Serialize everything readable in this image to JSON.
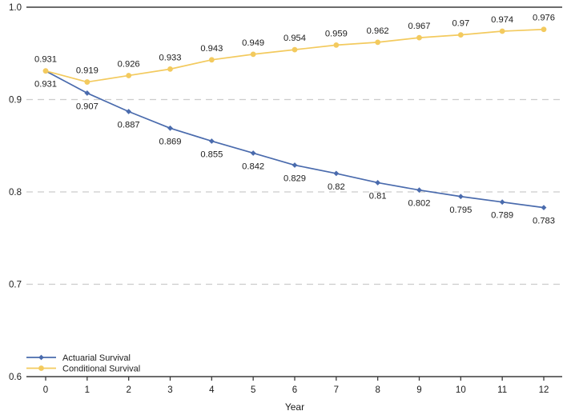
{
  "chart_data": {
    "type": "line",
    "title": "",
    "xlabel": "Year",
    "ylabel": "",
    "x": [
      0,
      1,
      2,
      3,
      4,
      5,
      6,
      7,
      8,
      9,
      10,
      11,
      12
    ],
    "xtick_labels": [
      "0",
      "1",
      "2",
      "3",
      "4",
      "5",
      "6",
      "7",
      "8",
      "9",
      "10",
      "11",
      "12"
    ],
    "ylim": [
      0.6,
      1.0
    ],
    "yticks": [
      1.0,
      0.9,
      0.8,
      0.7,
      0.6
    ],
    "ytick_labels": [
      "1.0",
      "0.9",
      "0.8",
      "0.7",
      "0.6"
    ],
    "grid": "horizontal-dashed",
    "legend_position": "bottom-left",
    "series": [
      {
        "name": "Actuarial Survival",
        "color": "#4a6bad",
        "marker": "diamond",
        "label_position": "below",
        "values": [
          0.931,
          0.907,
          0.887,
          0.869,
          0.855,
          0.842,
          0.829,
          0.82,
          0.81,
          0.802,
          0.795,
          0.789,
          0.783
        ],
        "labels": [
          "0.931",
          "0.907",
          "0.887",
          "0.869",
          "0.855",
          "0.842",
          "0.829",
          "0.82",
          "0.81",
          "0.802",
          "0.795",
          "0.789",
          "0.783"
        ]
      },
      {
        "name": "Conditional Survival",
        "color": "#f3ca5e",
        "marker": "circle",
        "label_position": "above",
        "values": [
          0.931,
          0.919,
          0.926,
          0.933,
          0.943,
          0.949,
          0.954,
          0.959,
          0.962,
          0.967,
          0.97,
          0.974,
          0.976
        ],
        "labels": [
          "0.931",
          "0.919",
          "0.926",
          "0.933",
          "0.943",
          "0.949",
          "0.954",
          "0.959",
          "0.962",
          "0.967",
          "0.97",
          "0.974",
          "0.976"
        ]
      }
    ],
    "colors": {
      "axis": "#3b3b3b",
      "grid": "#cccccc",
      "text": "#1c1c1c",
      "background": "#ffffff"
    }
  }
}
